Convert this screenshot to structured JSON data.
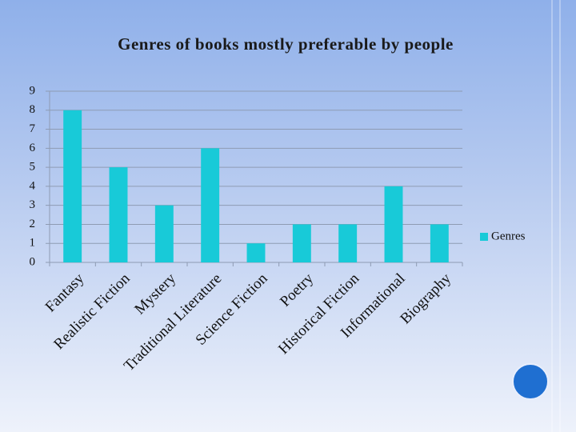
{
  "chart_data": {
    "type": "bar",
    "title": "Genres of books mostly preferable by people",
    "categories": [
      "Fantasy",
      "Realistic Fiction",
      "Mystery",
      "Traditional Literature",
      "Science Fiction",
      "Poetry",
      "Historical Fiction",
      "Informational",
      "Biography"
    ],
    "series": [
      {
        "name": "Genres",
        "color": "#18cad8",
        "values": [
          8,
          5,
          3,
          6,
          1,
          2,
          2,
          4,
          2
        ]
      }
    ],
    "ylim": [
      0,
      9
    ],
    "yticks": [
      0,
      1,
      2,
      3,
      4,
      5,
      6,
      7,
      8,
      9
    ],
    "grid": true,
    "legend": "right"
  }
}
